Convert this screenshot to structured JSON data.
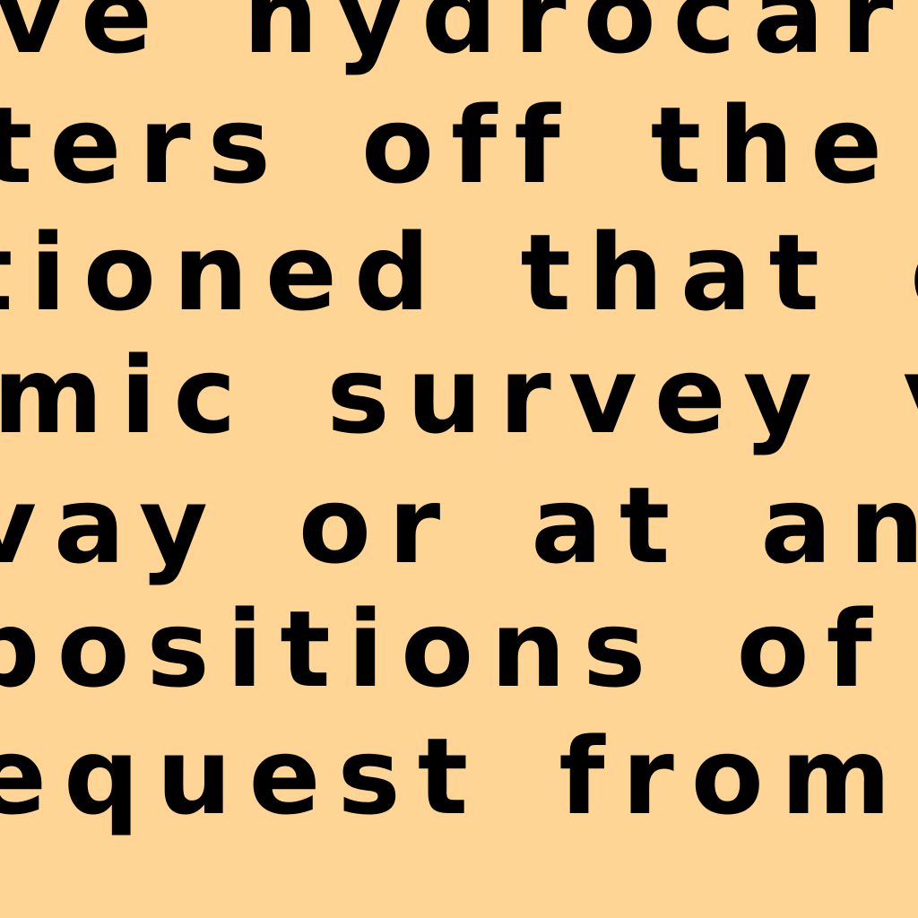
{
  "document": {
    "lines": [
      "ve hydrocarbon",
      "ters off the east",
      "tioned that drillin",
      "mic survey ves",
      "vay or at anchor",
      "positions of these",
      "equest from ECA"
    ]
  },
  "colors": {
    "background": "#FFD595",
    "text": "#000000"
  }
}
